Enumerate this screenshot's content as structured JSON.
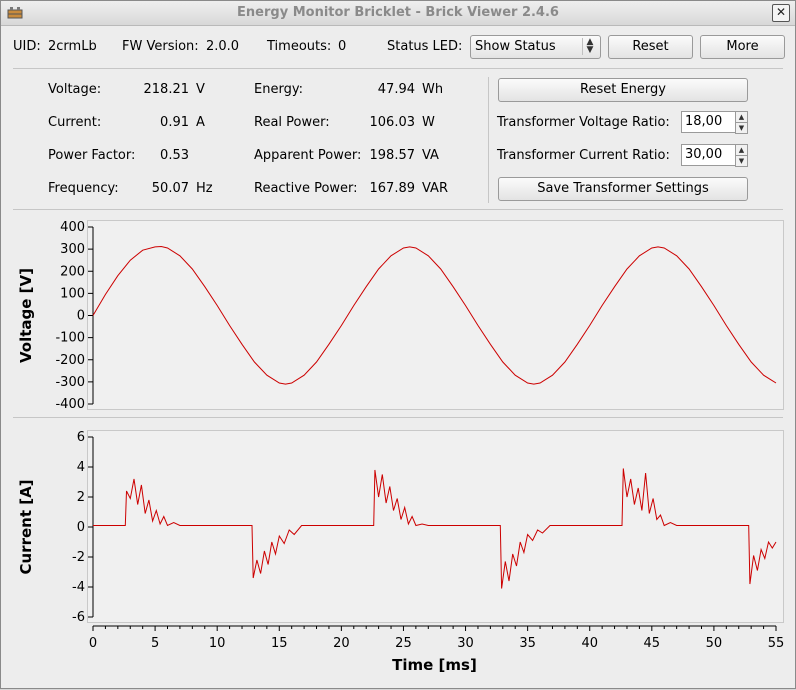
{
  "window": {
    "title": "Energy Monitor Bricklet - Brick Viewer 2.4.6"
  },
  "header": {
    "uid_label": "UID:",
    "uid_value": "2crmLb",
    "fw_label": "FW Version:",
    "fw_value": "2.0.0",
    "timeouts_label": "Timeouts:",
    "timeouts_value": "0",
    "status_led_label": "Status LED:",
    "status_led_value": "Show Status",
    "reset_label": "Reset",
    "more_label": "More"
  },
  "readings": {
    "voltage": {
      "label": "Voltage:",
      "value": "218.21",
      "unit": "V"
    },
    "current": {
      "label": "Current:",
      "value": "0.91",
      "unit": "A"
    },
    "power_factor": {
      "label": "Power Factor:",
      "value": "0.53",
      "unit": ""
    },
    "frequency": {
      "label": "Frequency:",
      "value": "50.07",
      "unit": "Hz"
    },
    "energy": {
      "label": "Energy:",
      "value": "47.94",
      "unit": "Wh"
    },
    "real_power": {
      "label": "Real Power:",
      "value": "106.03",
      "unit": "W"
    },
    "apparent_power": {
      "label": "Apparent Power:",
      "value": "198.57",
      "unit": "VA"
    },
    "reactive_power": {
      "label": "Reactive Power:",
      "value": "167.89",
      "unit": "VAR"
    }
  },
  "controls": {
    "reset_energy_label": "Reset Energy",
    "voltage_ratio_label": "Transformer Voltage Ratio:",
    "voltage_ratio_value": "18,00",
    "current_ratio_label": "Transformer Current Ratio:",
    "current_ratio_value": "30,00",
    "save_label": "Save Transformer Settings"
  },
  "colors": {
    "trace": "#cc0000"
  },
  "chart_data": [
    {
      "type": "line",
      "ylabel": "Voltage [V]",
      "ylim": [
        -400,
        400
      ],
      "yticks": [
        400,
        300,
        200,
        100,
        0,
        -100,
        -200,
        -300,
        -400
      ],
      "xlim": [
        0,
        55
      ],
      "series": [
        {
          "x": [
            0,
            1,
            2,
            3,
            4,
            5,
            5.5,
            6,
            7,
            8,
            9,
            10,
            11,
            12,
            13,
            14,
            15,
            15.5,
            16,
            17,
            18,
            19,
            20,
            21,
            22,
            23,
            24,
            25,
            25.5,
            26,
            27,
            28,
            29,
            30,
            31,
            32,
            33,
            34,
            35,
            35.5,
            36,
            37,
            38,
            39,
            40,
            41,
            42,
            43,
            44,
            45,
            45.5,
            46,
            47,
            48,
            49,
            50,
            51,
            52,
            53,
            54,
            55
          ],
          "y": [
            0,
            95,
            180,
            250,
            295,
            310,
            312,
            305,
            270,
            210,
            130,
            45,
            -45,
            -130,
            -210,
            -270,
            -305,
            -310,
            -305,
            -270,
            -210,
            -130,
            -45,
            45,
            130,
            210,
            270,
            305,
            310,
            305,
            270,
            210,
            130,
            45,
            -45,
            -130,
            -210,
            -270,
            -305,
            -310,
            -305,
            -270,
            -210,
            -130,
            -45,
            45,
            130,
            210,
            270,
            305,
            310,
            305,
            270,
            210,
            130,
            45,
            -45,
            -130,
            -210,
            -270,
            -305
          ]
        }
      ]
    },
    {
      "type": "line",
      "ylabel": "Current [A]",
      "xlabel": "Time [ms]",
      "ylim": [
        -6,
        6
      ],
      "yticks": [
        6,
        4,
        2,
        0,
        -2,
        -4,
        -6
      ],
      "xlim": [
        0,
        55
      ],
      "xticks": [
        0,
        5,
        10,
        15,
        20,
        25,
        30,
        35,
        40,
        45,
        50,
        55
      ],
      "series": [
        {
          "x": [
            0,
            2.6,
            2.7,
            3.0,
            3.3,
            3.6,
            3.9,
            4.2,
            4.5,
            4.8,
            5.1,
            5.4,
            5.7,
            6.0,
            6.5,
            7.0,
            12.8,
            12.9,
            13.2,
            13.5,
            13.8,
            14.1,
            14.4,
            14.7,
            15.0,
            15.4,
            15.8,
            16.2,
            16.8,
            17.5,
            22.6,
            22.7,
            23.0,
            23.3,
            23.6,
            23.9,
            24.2,
            24.5,
            24.8,
            25.1,
            25.4,
            25.7,
            26.0,
            26.5,
            27.0,
            32.8,
            32.9,
            33.2,
            33.5,
            33.8,
            34.1,
            34.4,
            34.7,
            35.0,
            35.4,
            35.8,
            36.2,
            36.8,
            37.5,
            42.6,
            42.7,
            43.0,
            43.3,
            43.6,
            43.9,
            44.2,
            44.5,
            44.8,
            45.1,
            45.4,
            45.7,
            46.0,
            46.5,
            47.0,
            52.8,
            52.9,
            53.2,
            53.5,
            53.8,
            54.1,
            54.4,
            54.7,
            55.0
          ],
          "y": [
            0.1,
            0.1,
            2.4,
            1.9,
            3.2,
            1.5,
            2.8,
            0.9,
            1.8,
            0.4,
            1.1,
            0.2,
            0.7,
            0.1,
            0.3,
            0.1,
            0.1,
            -3.4,
            -2.2,
            -3.1,
            -1.6,
            -2.5,
            -1.0,
            -1.8,
            -0.6,
            -1.1,
            -0.2,
            -0.5,
            0.1,
            0.1,
            0.1,
            3.8,
            2.0,
            3.5,
            1.6,
            2.7,
            1.1,
            1.9,
            0.5,
            1.3,
            0.2,
            0.7,
            0.1,
            0.2,
            0.1,
            0.1,
            -4.1,
            -2.3,
            -3.6,
            -1.8,
            -2.6,
            -1.0,
            -1.7,
            -0.5,
            -0.9,
            -0.2,
            -0.4,
            0.1,
            0.1,
            0.1,
            3.9,
            2.0,
            3.2,
            1.5,
            2.6,
            1.1,
            3.6,
            0.9,
            1.9,
            0.5,
            0.8,
            0.1,
            0.3,
            0.1,
            0.1,
            -3.8,
            -1.9,
            -2.9,
            -1.5,
            -2.1,
            -1.0,
            -1.4,
            -1.0
          ]
        }
      ]
    }
  ]
}
